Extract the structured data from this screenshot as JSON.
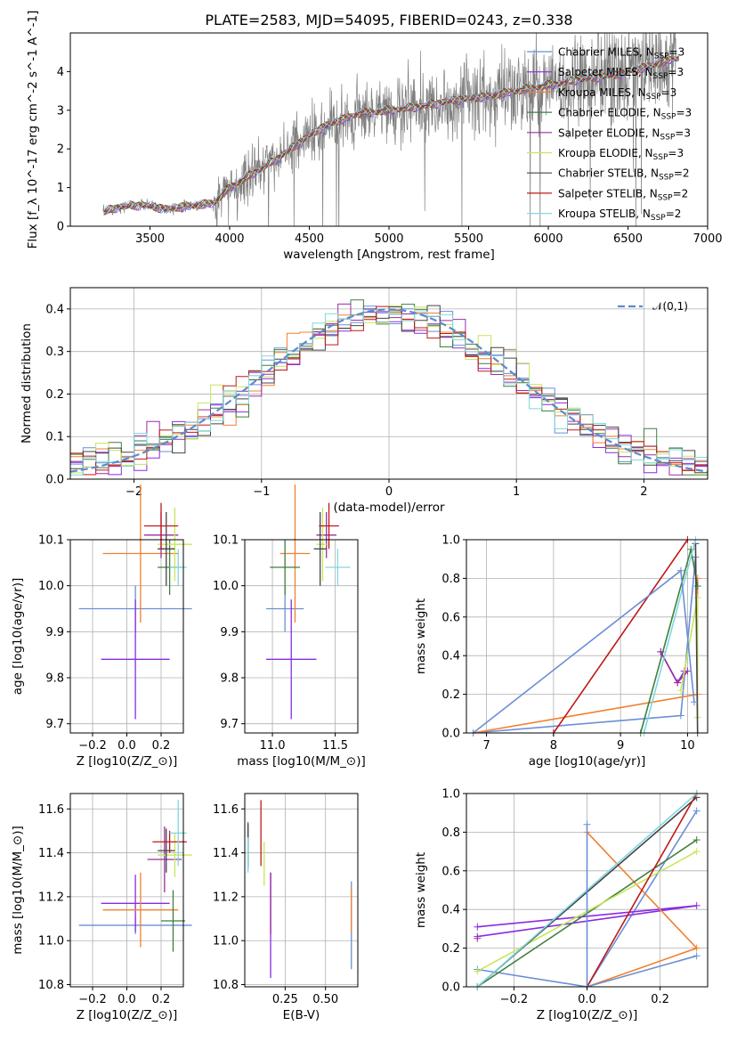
{
  "figure": {
    "title": "PLATE=2583, MJD=54095, FIBERID=0243, z=0.338"
  },
  "models": [
    {
      "name": "Chabrier MILES, N_SSP=3",
      "color": "#6a8fd6"
    },
    {
      "name": "Salpeter MILES, N_SSP=3",
      "color": "#8a2be2"
    },
    {
      "name": "Kroupa MILES, N_SSP=3",
      "color": "#f08030"
    },
    {
      "name": "Chabrier ELODIE, N_SSP=3",
      "color": "#3f7f3f"
    },
    {
      "name": "Salpeter ELODIE, N_SSP=3",
      "color": "#9a2ea0"
    },
    {
      "name": "Kroupa ELODIE, N_SSP=3",
      "color": "#c8e65a"
    },
    {
      "name": "Chabrier STELIB, N_SSP=2",
      "color": "#444444"
    },
    {
      "name": "Salpeter STELIB, N_SSP=2",
      "color": "#c01818"
    },
    {
      "name": "Kroupa STELIB, N_SSP=2",
      "color": "#80d8e0"
    }
  ],
  "chart_data": [
    {
      "id": "spectrum",
      "type": "line",
      "xlabel": "wavelength [Angstrom, rest frame]",
      "ylabel": "Flux [f_λ 10^-17 erg cm^-2 s^-1 A^-1]",
      "xlim": [
        3000,
        7000
      ],
      "ylim": [
        0,
        5
      ],
      "xticks": [
        3500,
        4000,
        4500,
        5000,
        5500,
        6000,
        6500,
        7000
      ],
      "yticks": [
        0,
        1,
        2,
        3,
        4
      ],
      "grid": false,
      "legend": "right",
      "data_color": "#808080",
      "continuum": {
        "x": [
          3200,
          3300,
          3450,
          3600,
          3700,
          3800,
          3900,
          4000,
          4100,
          4200,
          4300,
          4400,
          4500,
          4600,
          4800,
          5000,
          5200,
          5400,
          5600,
          5800,
          6000,
          6200,
          6400,
          6600,
          6800
        ],
        "y": [
          0.35,
          0.5,
          0.55,
          0.45,
          0.5,
          0.55,
          0.6,
          1.0,
          1.25,
          1.5,
          1.75,
          2.05,
          2.35,
          2.6,
          2.9,
          3.0,
          3.1,
          3.25,
          3.35,
          3.5,
          3.65,
          3.8,
          3.9,
          4.1,
          4.35
        ]
      }
    },
    {
      "id": "residuals",
      "type": "histogram",
      "xlabel": "(data-model)/error",
      "ylabel": "Normed distribution",
      "xlim": [
        -2.5,
        2.5
      ],
      "ylim": [
        0,
        0.45
      ],
      "xticks": [
        -2,
        -1,
        0,
        1,
        2
      ],
      "yticks": [
        0.0,
        0.1,
        0.2,
        0.3,
        0.4
      ],
      "grid": true,
      "legend": "top-right",
      "reference": {
        "name": "𝒩(0,1)",
        "mean": 0,
        "sigma": 1,
        "style": "dashed",
        "color": "#5b8bd0"
      }
    },
    {
      "id": "age_vs_Z",
      "type": "scatter",
      "xlabel": "Z [log10(Z/Z_⊙)]",
      "ylabel": "age [log10(age/yr)]",
      "xlim": [
        -0.33,
        0.33
      ],
      "ylim": [
        9.68,
        10.1
      ],
      "xticks": [
        -0.2,
        0.0,
        0.2
      ],
      "yticks": [
        9.7,
        9.8,
        9.9,
        10.0,
        10.1
      ],
      "grid": true,
      "points": [
        {
          "x": 0.05,
          "y": 9.95,
          "xerr": 0.33,
          "yerr": 0.05
        },
        {
          "x": 0.05,
          "y": 9.84,
          "xerr": 0.2,
          "yerr": 0.13
        },
        {
          "x": 0.08,
          "y": 10.07,
          "xerr": 0.22,
          "yerr": 0.15
        },
        {
          "x": 0.25,
          "y": 10.04,
          "xerr": 0.07,
          "yerr": 0.06
        },
        {
          "x": 0.2,
          "y": 10.11,
          "xerr": 0.1,
          "yerr": 0.05
        },
        {
          "x": 0.28,
          "y": 10.09,
          "xerr": 0.1,
          "yerr": 0.08
        },
        {
          "x": 0.23,
          "y": 10.08,
          "xerr": 0.05,
          "yerr": 0.08
        },
        {
          "x": 0.2,
          "y": 10.13,
          "xerr": 0.1,
          "yerr": 0.05
        },
        {
          "x": 0.3,
          "y": 10.04,
          "xerr": 0.05,
          "yerr": 0.04
        }
      ]
    },
    {
      "id": "age_vs_mass",
      "type": "scatter",
      "xlabel": "mass [log10(M/M_⊙)]",
      "ylabel": "",
      "xlim": [
        10.78,
        11.68
      ],
      "ylim": [
        9.68,
        10.1
      ],
      "xticks": [
        11.0,
        11.5
      ],
      "yticks": [
        9.7,
        9.8,
        9.9,
        10.0,
        10.1
      ],
      "grid": true,
      "points": [
        {
          "x": 11.1,
          "y": 9.95,
          "xerr": 0.15,
          "yerr": 0.05
        },
        {
          "x": 11.15,
          "y": 9.84,
          "xerr": 0.2,
          "yerr": 0.13
        },
        {
          "x": 11.18,
          "y": 10.07,
          "xerr": 0.12,
          "yerr": 0.15
        },
        {
          "x": 11.1,
          "y": 10.04,
          "xerr": 0.12,
          "yerr": 0.06
        },
        {
          "x": 11.43,
          "y": 10.11,
          "xerr": 0.08,
          "yerr": 0.05
        },
        {
          "x": 11.4,
          "y": 10.09,
          "xerr": 0.05,
          "yerr": 0.08
        },
        {
          "x": 11.38,
          "y": 10.08,
          "xerr": 0.05,
          "yerr": 0.08
        },
        {
          "x": 11.45,
          "y": 10.13,
          "xerr": 0.08,
          "yerr": 0.05
        },
        {
          "x": 11.52,
          "y": 10.04,
          "xerr": 0.1,
          "yerr": 0.04
        }
      ]
    },
    {
      "id": "massweight_vs_age",
      "type": "line",
      "xlabel": "age [log10(age/yr)]",
      "ylabel": "mass weight",
      "xlim": [
        6.7,
        10.3
      ],
      "ylim": [
        0.0,
        1.0
      ],
      "xticks": [
        7,
        8,
        9,
        10
      ],
      "yticks": [
        0.0,
        0.2,
        0.4,
        0.6,
        0.8,
        1.0
      ],
      "grid": true
    },
    {
      "id": "mass_vs_Z",
      "type": "scatter",
      "xlabel": "Z [log10(Z/Z_⊙)]",
      "ylabel": "mass [log10(M/M_⊙)]",
      "xlim": [
        -0.33,
        0.33
      ],
      "ylim": [
        10.79,
        11.67
      ],
      "xticks": [
        -0.2,
        0.0,
        0.2
      ],
      "yticks": [
        10.8,
        11.0,
        11.2,
        11.4,
        11.6
      ],
      "grid": true
    },
    {
      "id": "mass_vs_ebv",
      "type": "scatter",
      "xlabel": "E(B-V)",
      "ylabel": "",
      "xlim": [
        0.0,
        0.7
      ],
      "ylim": [
        10.79,
        11.67
      ],
      "xticks": [
        0.25,
        0.5
      ],
      "yticks": [
        10.8,
        11.0,
        11.2,
        11.4,
        11.6
      ],
      "grid": true
    },
    {
      "id": "massweight_vs_Z",
      "type": "line",
      "xlabel": "Z [log10(Z/Z_⊙)]",
      "ylabel": "mass weight",
      "xlim": [
        -0.33,
        0.33
      ],
      "ylim": [
        0.0,
        1.0
      ],
      "xticks": [
        -0.2,
        0.0,
        0.2
      ],
      "yticks": [
        0.0,
        0.2,
        0.4,
        0.6,
        0.8,
        1.0
      ],
      "grid": true
    }
  ]
}
